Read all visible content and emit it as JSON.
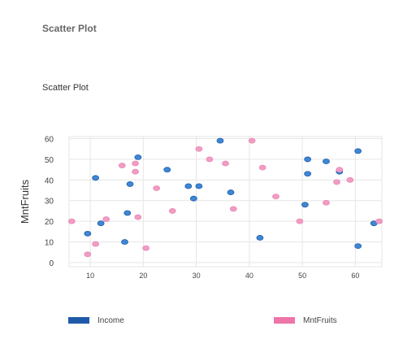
{
  "panel_title": "Scatter Plot",
  "chart_data": {
    "type": "scatter",
    "title": "Scatter Plot",
    "xlabel": "",
    "ylabel": "MntFruits",
    "xlim": [
      6,
      65
    ],
    "ylim": [
      -2,
      61
    ],
    "x_ticks": [
      10,
      20,
      30,
      40,
      50,
      60
    ],
    "y_ticks": [
      0,
      10,
      20,
      30,
      40,
      50,
      60
    ],
    "grid": true,
    "legend_position": "bottom",
    "series": [
      {
        "name": "Income",
        "color": "#3f86d6",
        "legend_color": "#1e5aa8",
        "points": [
          [
            9.5,
            14
          ],
          [
            11,
            41
          ],
          [
            12,
            19
          ],
          [
            16.5,
            10
          ],
          [
            17,
            24
          ],
          [
            17.5,
            38
          ],
          [
            19,
            51
          ],
          [
            24.5,
            45
          ],
          [
            28.5,
            37
          ],
          [
            29.5,
            31
          ],
          [
            30.5,
            37
          ],
          [
            34.5,
            59
          ],
          [
            36.5,
            34
          ],
          [
            42,
            12
          ],
          [
            50.5,
            28
          ],
          [
            51,
            50
          ],
          [
            51,
            43
          ],
          [
            54.5,
            49
          ],
          [
            57,
            44
          ],
          [
            60.5,
            54
          ],
          [
            60.5,
            8
          ],
          [
            63.5,
            19
          ]
        ]
      },
      {
        "name": "MntFruits",
        "color": "#f29cc4",
        "legend_color": "#ef75a8",
        "points": [
          [
            6.5,
            20
          ],
          [
            9.5,
            4
          ],
          [
            11,
            9
          ],
          [
            13,
            21
          ],
          [
            16,
            47
          ],
          [
            18.5,
            44
          ],
          [
            18.5,
            48
          ],
          [
            19,
            22
          ],
          [
            20.5,
            7
          ],
          [
            22.5,
            36
          ],
          [
            25.5,
            25
          ],
          [
            30.5,
            55
          ],
          [
            32.5,
            50
          ],
          [
            35.5,
            48
          ],
          [
            37,
            26
          ],
          [
            40.5,
            59
          ],
          [
            42.5,
            46
          ],
          [
            45,
            32
          ],
          [
            49.5,
            20
          ],
          [
            54.5,
            29
          ],
          [
            56.5,
            39
          ],
          [
            57,
            45
          ],
          [
            59,
            40
          ],
          [
            64.5,
            20
          ]
        ]
      }
    ]
  }
}
